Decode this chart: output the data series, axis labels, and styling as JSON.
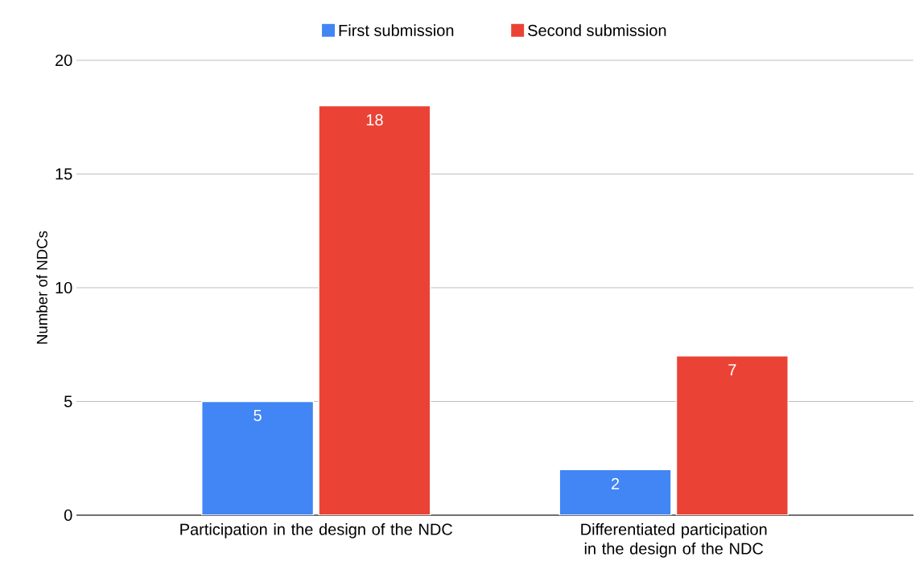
{
  "chart_data": {
    "type": "bar",
    "ylabel": "Number of NDCs",
    "categories": [
      "Participation in the design of the NDC",
      "Differentiated participation in the design of the NDC"
    ],
    "series": [
      {
        "name": "First submission",
        "color": "#4285f4",
        "values": [
          5,
          2
        ]
      },
      {
        "name": "Second submission",
        "color": "#ea4335",
        "values": [
          18,
          7
        ]
      }
    ],
    "ylim": [
      0,
      20
    ],
    "yticks": [
      0,
      5,
      10,
      15,
      20
    ],
    "grid": "y",
    "legend": "top",
    "data_labels": true
  }
}
